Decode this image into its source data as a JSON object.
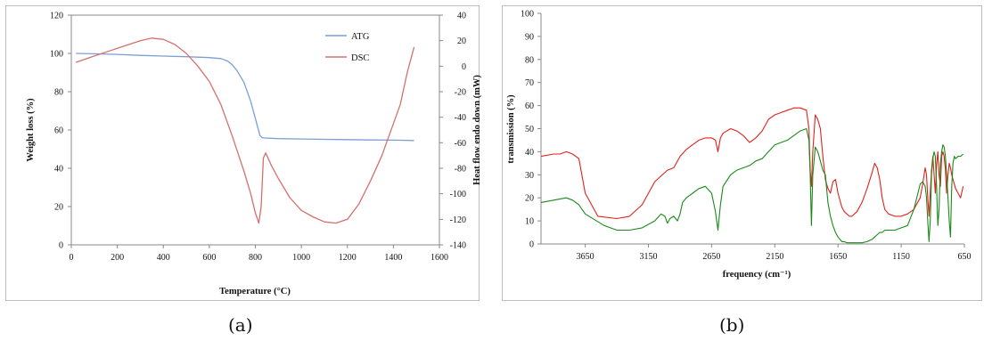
{
  "captions": {
    "a": "(a)",
    "b": "(b)"
  },
  "chart_data": [
    {
      "type": "line",
      "title": "",
      "xlabel": "Temperature (°C)",
      "ylabel": "Weight loss (%)",
      "y2label": "Heat flow endo down (mW)",
      "xlim": [
        0,
        1600
      ],
      "ylim": [
        0,
        120
      ],
      "y2lim": [
        -140,
        40
      ],
      "xticks": [
        0,
        200,
        400,
        600,
        800,
        1000,
        1200,
        1400,
        1600
      ],
      "yticks": [
        0,
        20,
        40,
        60,
        80,
        100,
        120
      ],
      "y2ticks": [
        -140,
        -120,
        -100,
        -80,
        -60,
        -40,
        -20,
        0,
        20,
        40
      ],
      "grid": false,
      "legend_position": "top-right",
      "series": [
        {
          "name": "ATG",
          "axis": "left",
          "color": "#7b9fd4",
          "x": [
            20,
            100,
            200,
            300,
            400,
            500,
            600,
            650,
            680,
            700,
            720,
            750,
            780,
            800,
            820,
            830,
            840,
            900,
            1000,
            1100,
            1200,
            1300,
            1400,
            1490
          ],
          "y": [
            100,
            99.8,
            99.5,
            99,
            98.6,
            98.3,
            97.8,
            97.3,
            96,
            94,
            91,
            85,
            75,
            66,
            57,
            56,
            55.8,
            55.5,
            55.3,
            55.1,
            55,
            54.8,
            54.7,
            54.5
          ]
        },
        {
          "name": "DSC",
          "axis": "right",
          "color": "#d4706e",
          "x": [
            20,
            100,
            200,
            300,
            350,
            400,
            450,
            500,
            550,
            600,
            650,
            700,
            750,
            780,
            800,
            815,
            825,
            835,
            845,
            870,
            900,
            950,
            1000,
            1050,
            1100,
            1150,
            1200,
            1250,
            1300,
            1350,
            1380,
            1400,
            1430,
            1460,
            1490
          ],
          "y": [
            3,
            8,
            14,
            20,
            22,
            21,
            17,
            10,
            0,
            -12,
            -30,
            -55,
            -82,
            -100,
            -115,
            -123,
            -110,
            -72,
            -68,
            -78,
            -88,
            -103,
            -113,
            -118,
            -122,
            -123,
            -120,
            -108,
            -90,
            -70,
            -55,
            -45,
            -30,
            -5,
            15
          ]
        }
      ]
    },
    {
      "type": "line",
      "title": "",
      "xlabel": "frequency (cm⁻¹)",
      "ylabel": "transmission (%)",
      "xlim": [
        4000,
        650
      ],
      "ylim": [
        0,
        100
      ],
      "xticks": [
        3650,
        3150,
        2650,
        2150,
        1650,
        1150,
        650
      ],
      "yticks": [
        0,
        10,
        20,
        30,
        40,
        50,
        60,
        70,
        80,
        90,
        100
      ],
      "grid": false,
      "series": [
        {
          "color": "#e0211d",
          "x": [
            4000,
            3900,
            3850,
            3800,
            3750,
            3700,
            3650,
            3550,
            3400,
            3300,
            3200,
            3100,
            3000,
            2950,
            2900,
            2850,
            2800,
            2750,
            2700,
            2650,
            2620,
            2600,
            2580,
            2560,
            2500,
            2450,
            2400,
            2350,
            2300,
            2250,
            2200,
            2150,
            2100,
            2050,
            2000,
            1950,
            1900,
            1880,
            1870,
            1860,
            1850,
            1830,
            1810,
            1790,
            1770,
            1750,
            1730,
            1710,
            1690,
            1670,
            1650,
            1620,
            1600,
            1580,
            1560,
            1540,
            1500,
            1460,
            1420,
            1380,
            1360,
            1340,
            1320,
            1300,
            1280,
            1250,
            1200,
            1150,
            1100,
            1050,
            1000,
            980,
            960,
            950,
            940,
            930,
            920,
            910,
            900,
            890,
            880,
            870,
            860,
            850,
            840,
            830,
            820,
            810,
            800,
            790,
            780,
            770,
            760,
            750,
            740,
            730,
            720,
            700,
            680,
            660
          ],
          "y": [
            38,
            39,
            39,
            40,
            39,
            37,
            22,
            12,
            11,
            12,
            17,
            27,
            32,
            33,
            38,
            41,
            43,
            45,
            46,
            46,
            45,
            40,
            46,
            48,
            50,
            49,
            47,
            44,
            46,
            49,
            54,
            56,
            57,
            58,
            59,
            59,
            58,
            50,
            32,
            25,
            40,
            56,
            54,
            50,
            38,
            28,
            24,
            22,
            27,
            28,
            22,
            16,
            14,
            13,
            12,
            12,
            14,
            18,
            24,
            31,
            35,
            33,
            28,
            20,
            15,
            13,
            12,
            12,
            13,
            15,
            20,
            26,
            33,
            30,
            20,
            12,
            22,
            32,
            38,
            30,
            22,
            34,
            40,
            30,
            25,
            38,
            40,
            38,
            32,
            22,
            30,
            35,
            33,
            30,
            28,
            26,
            24,
            22,
            20,
            25
          ]
        },
        {
          "color": "#1a8a1a",
          "x": [
            4000,
            3900,
            3800,
            3750,
            3700,
            3650,
            3500,
            3400,
            3300,
            3200,
            3100,
            3050,
            3020,
            3000,
            2980,
            2950,
            2920,
            2900,
            2880,
            2850,
            2800,
            2750,
            2700,
            2650,
            2620,
            2600,
            2580,
            2560,
            2500,
            2450,
            2400,
            2350,
            2300,
            2250,
            2200,
            2150,
            2100,
            2050,
            2000,
            1950,
            1900,
            1880,
            1870,
            1860,
            1850,
            1830,
            1810,
            1790,
            1770,
            1750,
            1730,
            1710,
            1690,
            1670,
            1650,
            1620,
            1600,
            1580,
            1560,
            1540,
            1500,
            1460,
            1420,
            1380,
            1360,
            1340,
            1320,
            1300,
            1280,
            1250,
            1200,
            1150,
            1100,
            1050,
            1000,
            980,
            960,
            950,
            940,
            930,
            920,
            910,
            900,
            890,
            880,
            870,
            860,
            850,
            840,
            830,
            820,
            810,
            800,
            790,
            780,
            770,
            760,
            750,
            740,
            730,
            720,
            700,
            680,
            660
          ],
          "y": [
            18,
            19,
            20,
            19,
            17,
            13,
            8,
            6,
            6,
            7,
            10,
            13,
            12,
            9,
            11,
            12,
            10,
            13,
            18,
            20,
            22,
            24,
            25,
            22,
            14,
            6,
            17,
            25,
            30,
            32,
            33,
            34,
            36,
            37,
            40,
            43,
            44,
            45,
            47,
            49,
            50,
            45,
            30,
            8,
            30,
            42,
            40,
            36,
            32,
            30,
            18,
            12,
            8,
            5,
            3,
            1,
            1,
            0.5,
            0.5,
            0.5,
            0.5,
            0.5,
            1,
            2,
            3,
            4,
            5,
            5,
            6,
            6,
            6,
            7,
            8,
            15,
            26,
            27,
            25,
            20,
            10,
            1,
            10,
            30,
            37,
            40,
            38,
            25,
            8,
            15,
            35,
            40,
            43,
            42,
            38,
            30,
            20,
            10,
            3,
            25,
            35,
            38,
            37,
            38,
            38,
            39
          ]
        }
      ]
    }
  ]
}
